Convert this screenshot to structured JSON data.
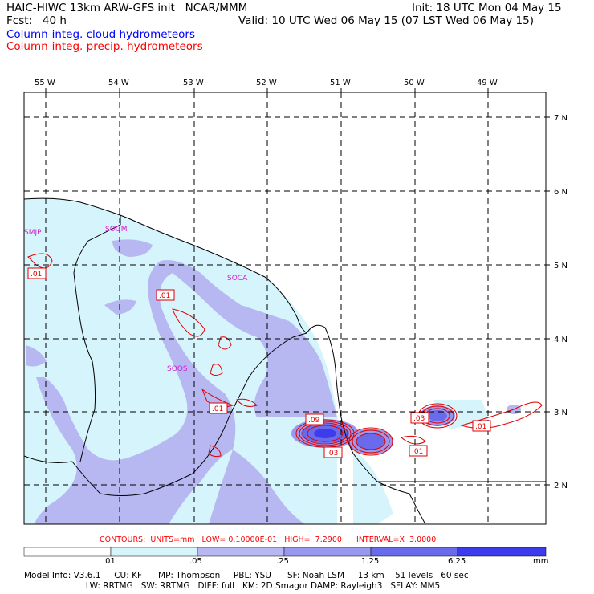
{
  "header": {
    "title": "HAIC-HIWC 13km ARW-GFS init   NCAR/MMM",
    "init": "Init: 18 UTC Mon 04 May 15",
    "fcst": "Fcst:   40 h",
    "valid": "Valid: 10 UTC Wed 06 May 15 (07 LST Wed 06 May 15)",
    "field_cloud": "Column-integ. cloud hydrometeors",
    "field_precip": "Column-integ. precip. hydrometeors"
  },
  "map": {
    "lon_labels": [
      "55 W",
      "54 W",
      "53 W",
      "52 W",
      "51 W",
      "50 W",
      "49 W"
    ],
    "lat_labels": [
      "7 N",
      "6 N",
      "5 N",
      "4 N",
      "3 N",
      "2 N"
    ],
    "stations": [
      "SMJP",
      "SOGM",
      "SOCA",
      "SOOS"
    ],
    "contour_labels": [
      ".01",
      ".01",
      ".01",
      ".09",
      ".03",
      ".03",
      ".01",
      ".01"
    ]
  },
  "colorbar": {
    "ticks": [
      ".01",
      ".05",
      ".25",
      "1.25",
      "6.25"
    ],
    "unit": "mm",
    "colors": [
      "#ffffff",
      "#d6f4fb",
      "#b7b7f2",
      "#9898ee",
      "#6a6aec",
      "#3c3ced",
      "#1c1ce8"
    ]
  },
  "contours_info": "CONTOURS:  UNITS=mm   LOW= 0.10000E-01   HIGH=  7.2900      INTERVAL=X  3.0000",
  "footer": {
    "line1": "Model Info: V3.6.1     CU: KF      MP: Thompson     PBL: YSU      SF: Noah LSM     13 km    51 levels   60 sec",
    "line2": "                       LW: RRTMG   SW: RRTMG   DIFF: full   KM: 2D Smagor DAMP: Rayleigh3   SFLAY: MM5"
  }
}
